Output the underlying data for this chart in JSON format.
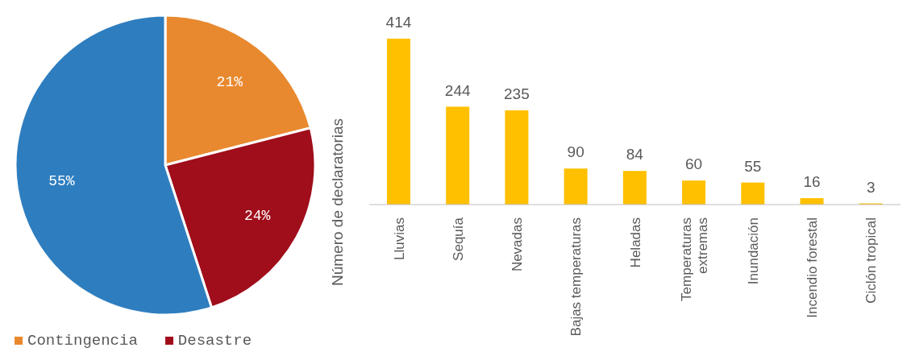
{
  "chart_data": [
    {
      "type": "pie",
      "categories": [
        "Contingencia",
        "Desastre",
        null
      ],
      "values": [
        21,
        24,
        55
      ],
      "colors": [
        "#e8892f",
        "#a00d1b",
        "#2e7ebf"
      ],
      "value_labels": [
        "21%",
        "24%",
        "55%"
      ],
      "legend": "bottom left"
    },
    {
      "type": "bar",
      "categories": [
        "Lluvias",
        "Sequía",
        "Nevadas",
        "Bajas temperaturas",
        "Heladas",
        "Temperaturas\nextremas",
        "Inundación",
        "Incendio forestal",
        "Ciclón tropical"
      ],
      "values": [
        414,
        244,
        235,
        90,
        84,
        60,
        55,
        16,
        3
      ],
      "color": "#ffc000",
      "ylabel": "Número de declaratorias",
      "data_labels": true
    }
  ]
}
